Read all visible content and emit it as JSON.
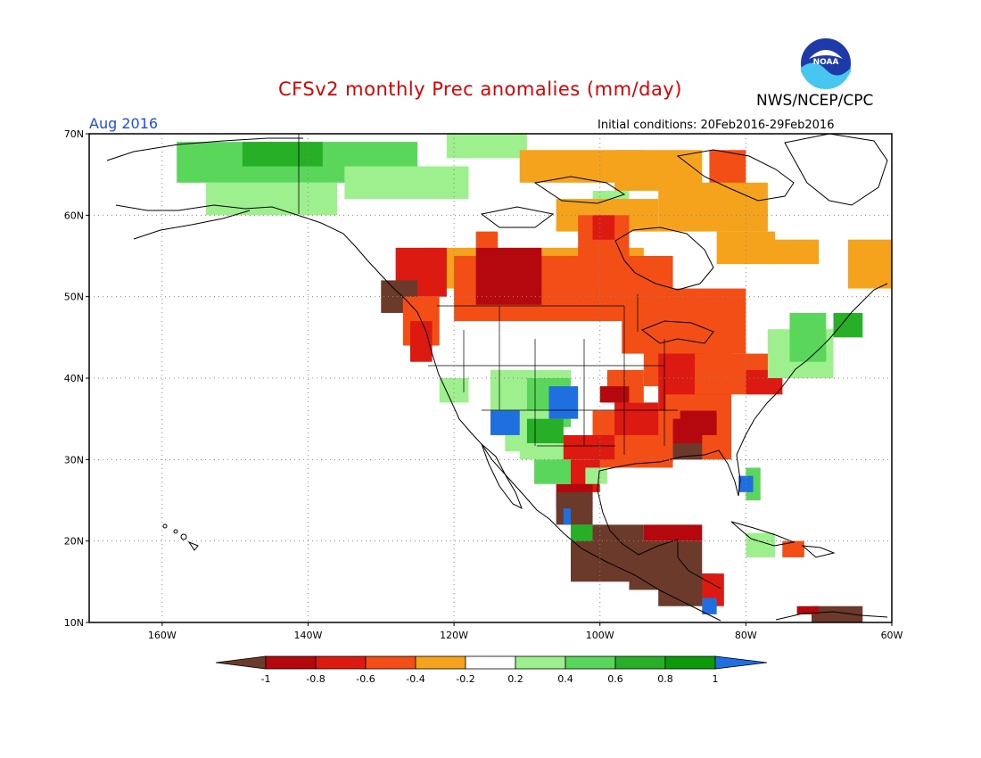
{
  "header": {
    "title": "CFSv2 monthly Prec anomalies (mm/day)",
    "org": "NWS/NCEP/CPC",
    "month": "Aug 2016",
    "init_conditions": "Initial conditions: 20Feb2016-29Feb2016",
    "logo_text": "NOAA"
  },
  "map": {
    "lat_labels": [
      "70N",
      "60N",
      "50N",
      "40N",
      "30N",
      "20N",
      "10N"
    ],
    "lon_labels": [
      "160W",
      "140W",
      "120W",
      "100W",
      "80W",
      "60W"
    ]
  },
  "colorbar": {
    "labels": [
      "-1",
      "-0.8",
      "-0.6",
      "-0.4",
      "-0.2",
      "0.2",
      "0.4",
      "0.6",
      "0.8",
      "1"
    ],
    "colors": [
      "#6b3a2a",
      "#b5080e",
      "#dc1a12",
      "#f24e16",
      "#f5a21c",
      "#ffffff",
      "#9ef08e",
      "#5ad65a",
      "#27b027",
      "#0c9a0c",
      "#1f6fe0"
    ]
  }
}
